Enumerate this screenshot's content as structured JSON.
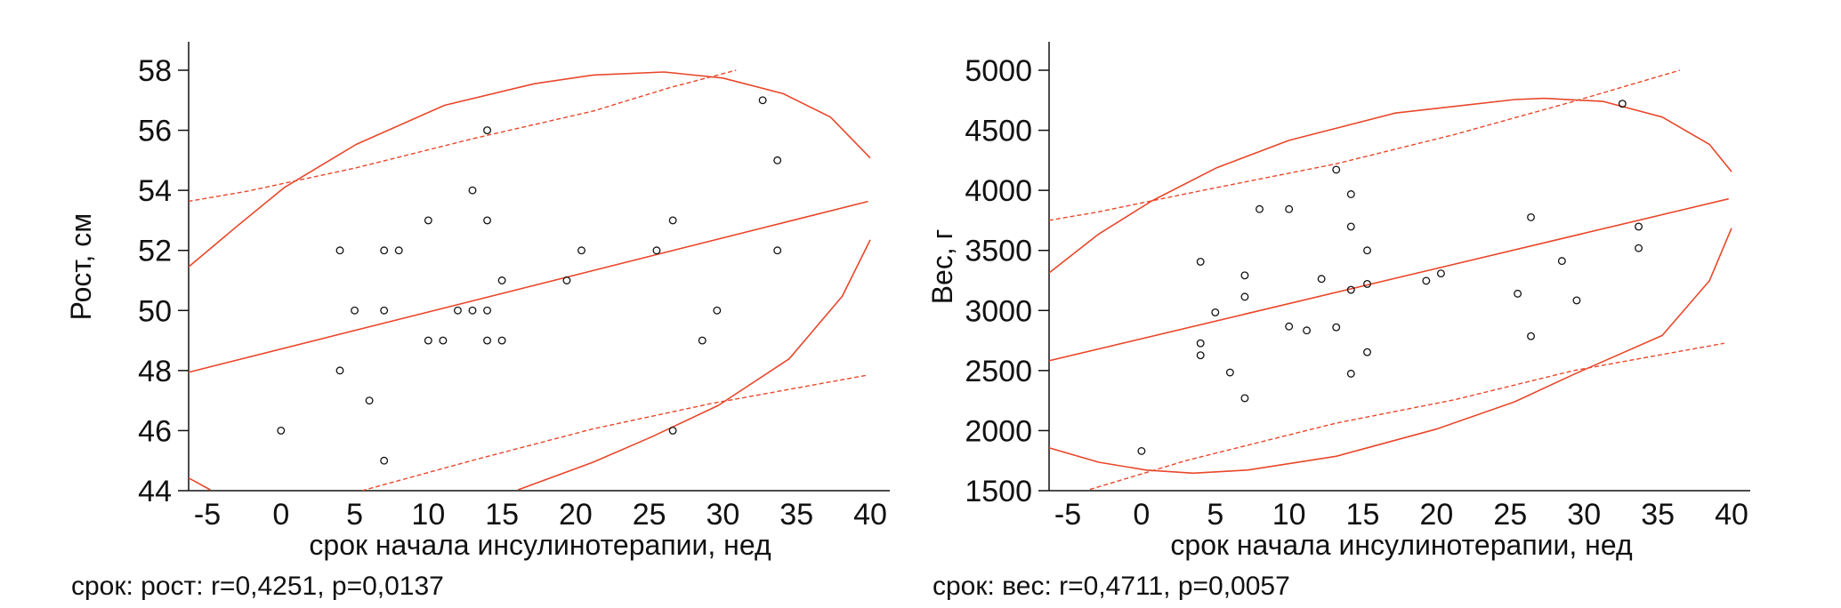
{
  "colors": {
    "fit": "#e8472a",
    "points": "#111111",
    "axis": "#111111"
  },
  "chart_data": [
    {
      "type": "scatter",
      "xlabel": "срок начала инсулинотерапии, нед",
      "ylabel": "Рост, см",
      "annotation": "срок: рост: r=0,4251, p=0,0137",
      "xlim": [
        -6.3,
        41.3
      ],
      "ylim": [
        44,
        58.9
      ],
      "xticks": [
        -5,
        0,
        5,
        10,
        15,
        20,
        25,
        30,
        35,
        40
      ],
      "yticks": [
        44,
        46,
        48,
        50,
        52,
        54,
        56,
        58
      ],
      "points": [
        [
          0,
          46
        ],
        [
          4,
          52
        ],
        [
          4,
          48
        ],
        [
          5,
          50
        ],
        [
          6,
          47
        ],
        [
          7,
          52
        ],
        [
          7,
          50
        ],
        [
          7,
          45
        ],
        [
          8,
          52
        ],
        [
          10,
          53
        ],
        [
          10,
          49
        ],
        [
          11,
          49
        ],
        [
          12,
          50
        ],
        [
          13,
          54
        ],
        [
          13,
          50
        ],
        [
          14,
          56
        ],
        [
          14,
          53
        ],
        [
          14,
          50
        ],
        [
          14,
          49
        ],
        [
          15,
          51
        ],
        [
          15,
          49
        ],
        [
          19.4,
          51
        ],
        [
          20.4,
          52
        ],
        [
          25.5,
          52
        ],
        [
          26.6,
          53
        ],
        [
          26.6,
          46
        ],
        [
          28.6,
          49
        ],
        [
          29.6,
          50
        ],
        [
          32.7,
          57
        ],
        [
          33.7,
          55
        ],
        [
          33.7,
          52
        ]
      ],
      "regression": [
        [
          -6.3,
          47.94
        ],
        [
          39.85,
          53.63
        ]
      ],
      "confidence_upper": [
        [
          -6.3,
          53.63
        ],
        [
          -2.2,
          53.98
        ],
        [
          5.1,
          54.75
        ],
        [
          13.1,
          55.73
        ],
        [
          21.2,
          56.64
        ],
        [
          26.4,
          57.42
        ],
        [
          30.9,
          58
        ]
      ],
      "confidence_lower": [
        [
          5.5,
          44
        ],
        [
          13.1,
          45.02
        ],
        [
          21.2,
          46.06
        ],
        [
          29.2,
          46.9
        ],
        [
          39.85,
          47.85
        ]
      ],
      "ellipse_segments": [
        [
          [
            -6.3,
            51.44
          ],
          [
            -3,
            52.8
          ],
          [
            0.24,
            54.1
          ],
          [
            5.1,
            55.53
          ],
          [
            11.1,
            56.83
          ],
          [
            17.2,
            57.55
          ],
          [
            21.2,
            57.84
          ],
          [
            26,
            57.94
          ],
          [
            30,
            57.74
          ],
          [
            34.1,
            57.22
          ],
          [
            37.3,
            56.44
          ],
          [
            40,
            55.08
          ]
        ],
        [
          [
            40,
            52.35
          ],
          [
            38.1,
            50.47
          ],
          [
            34.5,
            48.39
          ],
          [
            29.7,
            46.84
          ],
          [
            25.2,
            45.8
          ],
          [
            21.2,
            44.95
          ],
          [
            16.1,
            44.03
          ]
        ],
        [
          [
            -6.3,
            44.43
          ],
          [
            -4.8,
            44.03
          ]
        ]
      ]
    },
    {
      "type": "scatter",
      "xlabel": "срок начала инсулинотерапии, нед",
      "ylabel": "Вес, г",
      "annotation": "срок: вес: r=0,4711, p=0,0057",
      "xlim": [
        -6.27,
        41.3
      ],
      "ylim": [
        1500,
        5200
      ],
      "xticks": [
        -5,
        0,
        5,
        10,
        15,
        20,
        25,
        30,
        35,
        40
      ],
      "yticks": [
        1500,
        2000,
        2500,
        3000,
        3500,
        4000,
        4500,
        5000
      ],
      "points": [
        [
          0,
          1830
        ],
        [
          4,
          3406
        ],
        [
          4,
          2727
        ],
        [
          4,
          2627
        ],
        [
          5,
          2984
        ],
        [
          6,
          2484
        ],
        [
          7,
          3292
        ],
        [
          7,
          3114
        ],
        [
          7,
          2270
        ],
        [
          8,
          3844
        ],
        [
          10,
          3844
        ],
        [
          10,
          2867
        ],
        [
          11.2,
          2834
        ],
        [
          12.2,
          3263
        ],
        [
          13.2,
          4172
        ],
        [
          13.2,
          2860
        ],
        [
          14.2,
          3968
        ],
        [
          14.2,
          3698
        ],
        [
          14.2,
          3172
        ],
        [
          14.2,
          2474
        ],
        [
          15.3,
          3500
        ],
        [
          15.3,
          3221
        ],
        [
          15.3,
          2653
        ],
        [
          19.3,
          3247
        ],
        [
          20.3,
          3308
        ],
        [
          25.5,
          3140
        ],
        [
          26.4,
          3776
        ],
        [
          26.4,
          2786
        ],
        [
          28.5,
          3412
        ],
        [
          29.5,
          3084
        ],
        [
          32.6,
          4721
        ],
        [
          33.7,
          3698
        ],
        [
          33.7,
          3519
        ]
      ],
      "regression": [
        [
          -6.27,
          2581
        ],
        [
          39.8,
          3929
        ]
      ],
      "confidence_upper": [
        [
          -6.27,
          3750
        ],
        [
          -2.9,
          3821
        ],
        [
          3.9,
          3994
        ],
        [
          13.2,
          4221
        ],
        [
          21.2,
          4464
        ],
        [
          29.3,
          4740
        ],
        [
          36.5,
          5000
        ]
      ],
      "confidence_lower": [
        [
          -3.5,
          1510
        ],
        [
          3.1,
          1753
        ],
        [
          13.2,
          2062
        ],
        [
          21.2,
          2256
        ],
        [
          29.3,
          2500
        ],
        [
          39.5,
          2727
        ]
      ],
      "ellipse_segments": [
        [
          [
            -6.27,
            3312
          ],
          [
            -2.9,
            3636
          ],
          [
            0.7,
            3912
          ],
          [
            5.1,
            4188
          ],
          [
            10,
            4416
          ],
          [
            17.2,
            4643
          ],
          [
            25.3,
            4756
          ],
          [
            27.3,
            4766
          ],
          [
            31.3,
            4740
          ],
          [
            35.3,
            4610
          ],
          [
            38.5,
            4383
          ],
          [
            40,
            4156
          ]
        ],
        [
          [
            40,
            3685
          ],
          [
            38.5,
            3247
          ],
          [
            35.3,
            2792
          ],
          [
            29.3,
            2468
          ],
          [
            25.3,
            2240
          ],
          [
            20,
            2013
          ],
          [
            13.2,
            1786
          ],
          [
            7.2,
            1672
          ],
          [
            3.5,
            1646
          ],
          [
            0.3,
            1672
          ],
          [
            -2.9,
            1737
          ],
          [
            -6.27,
            1857
          ]
        ]
      ]
    }
  ]
}
